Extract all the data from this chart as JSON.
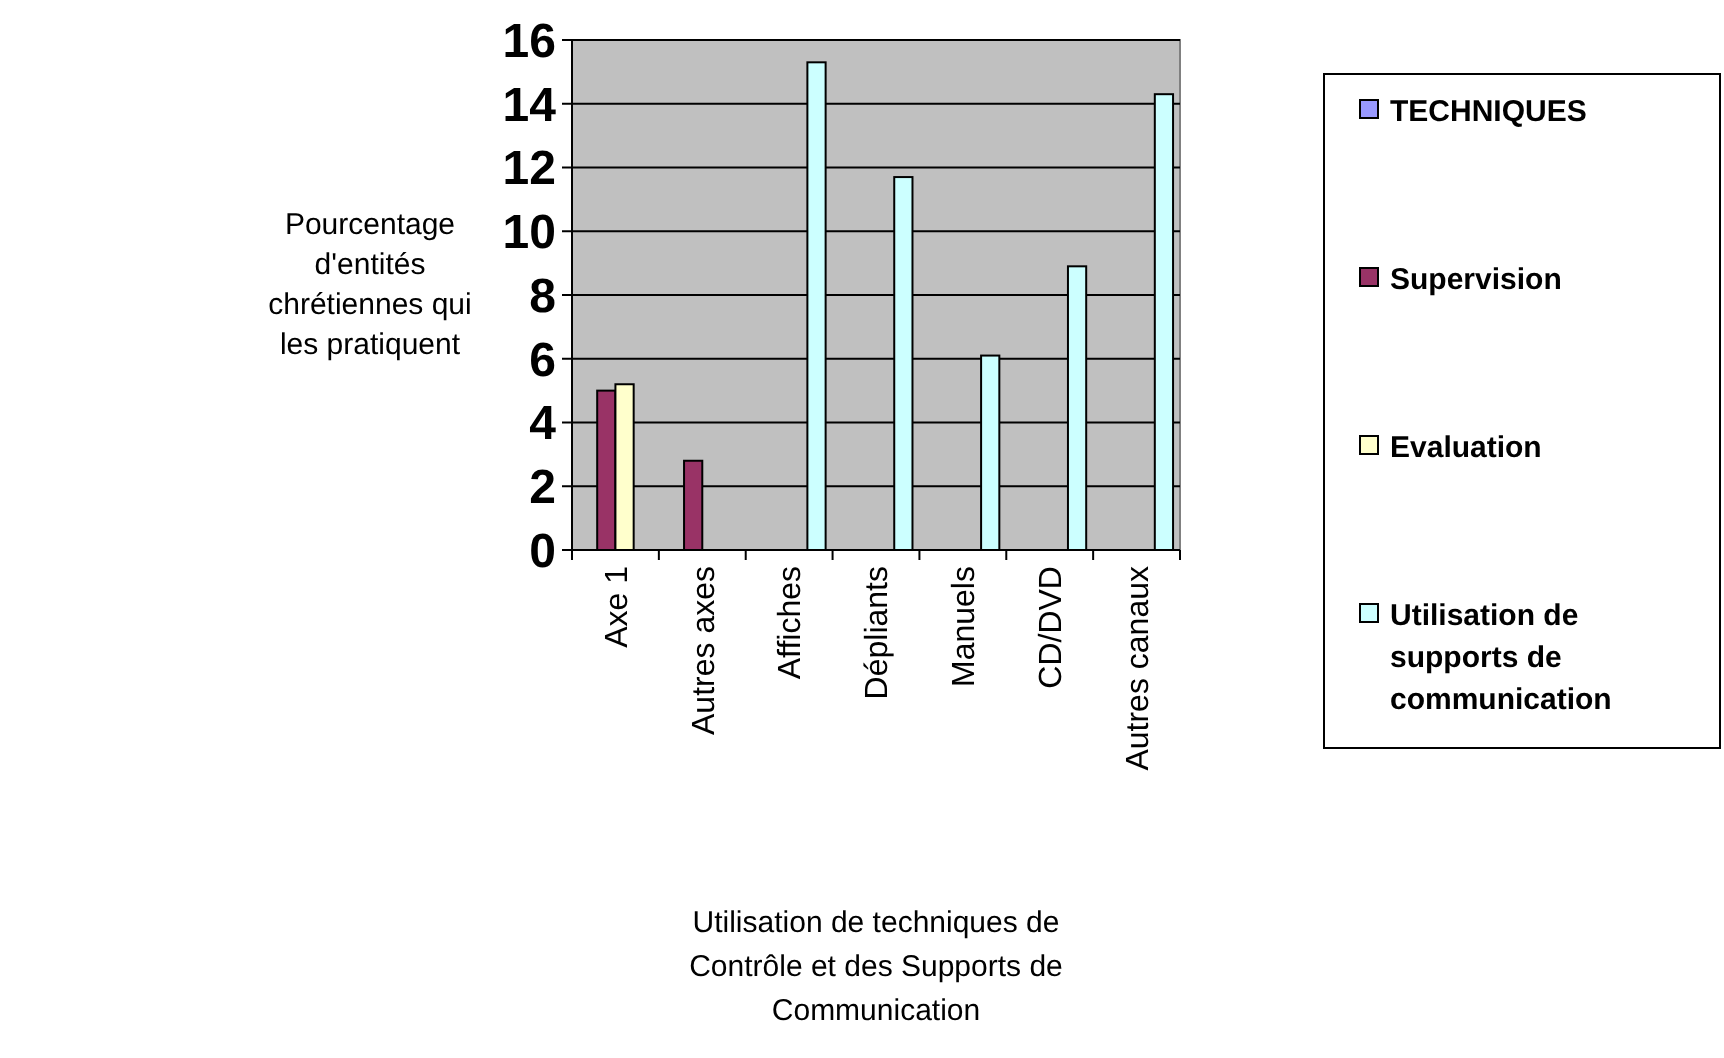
{
  "chart_data": {
    "type": "bar",
    "xlabel": "Utilisation de techniques de Contrôle et des Supports de Communication",
    "ylabel": "Pourcentage d'entités chrétiennes qui les pratiquent",
    "categories": [
      "Axe 1",
      "Autres axes",
      "Affiches",
      "Dépliants",
      "Manuels",
      "CD/DVD",
      "Autres canaux"
    ],
    "series": [
      {
        "name": "TECHNIQUES",
        "color": "#9999ff",
        "values": [
          null,
          null,
          null,
          null,
          null,
          null,
          null
        ]
      },
      {
        "name": "Supervision",
        "color": "#993366",
        "values": [
          5.0,
          2.8,
          null,
          null,
          null,
          null,
          null
        ]
      },
      {
        "name": "Evaluation",
        "color": "#ffffcc",
        "values": [
          5.2,
          null,
          null,
          null,
          null,
          null,
          null
        ]
      },
      {
        "name": "Utilisation de supports de communication",
        "color": "#ccffff",
        "values": [
          null,
          null,
          15.3,
          11.7,
          6.1,
          8.9,
          14.3
        ]
      }
    ],
    "ylim": [
      0,
      16
    ],
    "yticks": [
      0,
      2,
      4,
      6,
      8,
      10,
      12,
      14,
      16
    ],
    "grid": "y",
    "legend": "right"
  }
}
